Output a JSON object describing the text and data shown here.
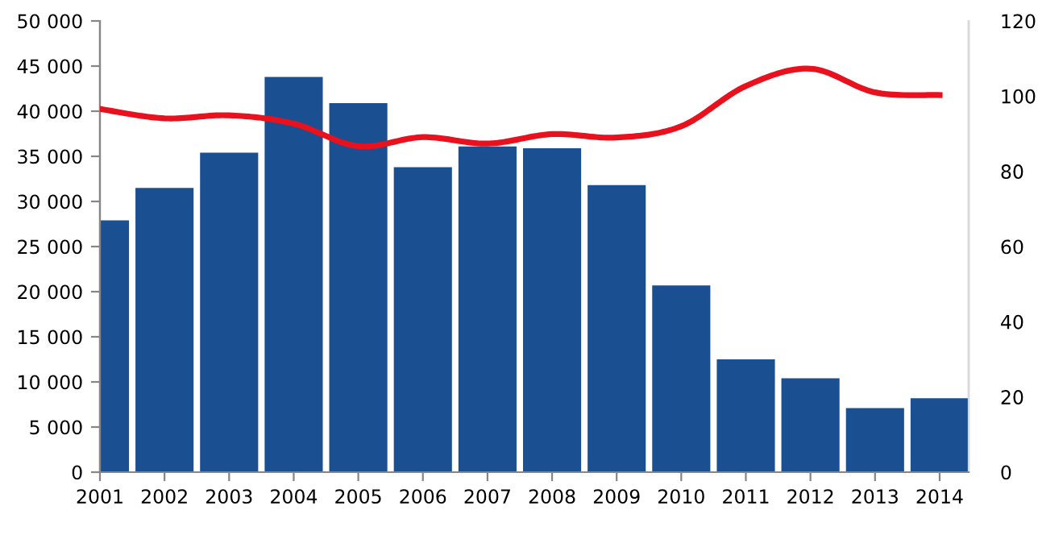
{
  "chart_data": {
    "type": "bar",
    "categories": [
      "2001",
      "2002",
      "2003",
      "2004",
      "2005",
      "2006",
      "2007",
      "2008",
      "2009",
      "2010",
      "2011",
      "2012",
      "2013",
      "2014"
    ],
    "series": [
      {
        "color": "#1a4f91",
        "values": [
          27900,
          31500,
          35400,
          43800,
          40900,
          33800,
          36100,
          35900,
          31800,
          20700,
          12500,
          10400,
          7100,
          8200
        ]
      },
      {
        "type": "line",
        "axis": "y2",
        "color": "#e8111d",
        "values": [
          96.6,
          94.1,
          94.9,
          92.7,
          86.7,
          89.1,
          87.4,
          89.9,
          89.0,
          92.0,
          102.7,
          107.3,
          101.0,
          100.3
        ]
      }
    ],
    "ylim": [
      0,
      50000
    ],
    "yticks": [
      0,
      {
        "value": 5000,
        "label": "5 000"
      },
      {
        "value": 10000,
        "label": "10 000"
      },
      {
        "value": 15000,
        "label": "15 000"
      },
      {
        "value": 20000,
        "label": "20 000"
      },
      {
        "value": 25000,
        "label": "25 000"
      },
      {
        "value": 30000,
        "label": "30 000"
      },
      {
        "value": 35000,
        "label": "35 000"
      },
      {
        "value": 40000,
        "label": "40 000"
      },
      {
        "value": 45000,
        "label": "45 000"
      },
      {
        "value": 50000,
        "label": "50 000"
      }
    ],
    "y2lim": [
      0,
      120
    ],
    "y2ticks": [
      0,
      20,
      40,
      60,
      80,
      100,
      120
    ],
    "grid": false,
    "legend": false,
    "line_style": "solid",
    "marker": "none"
  }
}
